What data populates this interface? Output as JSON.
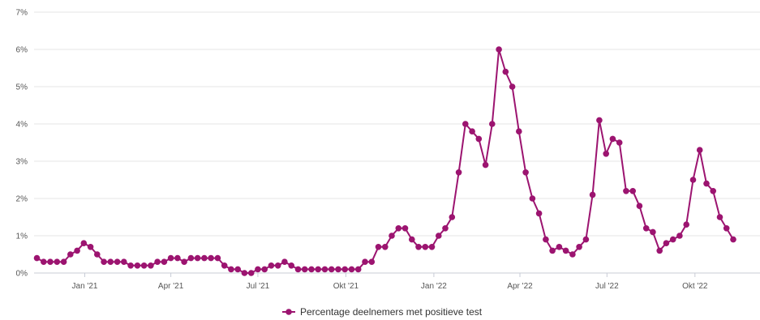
{
  "chart_data": {
    "type": "line",
    "title": "",
    "xlabel": "",
    "ylabel": "",
    "ylim": [
      0,
      7
    ],
    "y_ticks": [
      "0%",
      "1%",
      "2%",
      "3%",
      "4%",
      "5%",
      "6%",
      "7%"
    ],
    "x_range": [
      "2020-11-09",
      "2022-12-08"
    ],
    "x_ticks": [
      {
        "date": "2021-01-01",
        "label": "Jan '21"
      },
      {
        "date": "2021-04-01",
        "label": "Apr '21"
      },
      {
        "date": "2021-07-01",
        "label": "Jul '21"
      },
      {
        "date": "2021-10-01",
        "label": "Okt '21"
      },
      {
        "date": "2022-01-01",
        "label": "Jan '22"
      },
      {
        "date": "2022-04-01",
        "label": "Apr '22"
      },
      {
        "date": "2022-07-01",
        "label": "Jul '22"
      },
      {
        "date": "2022-10-01",
        "label": "Okt '22"
      }
    ],
    "grid": "horizontal",
    "legend_position": "bottom-center",
    "color": "#9c1470",
    "series": [
      {
        "name": "Percentage deelnemers met positieve test",
        "points": [
          [
            "2020-11-12",
            0.4
          ],
          [
            "2020-11-19",
            0.3
          ],
          [
            "2020-11-26",
            0.3
          ],
          [
            "2020-12-03",
            0.3
          ],
          [
            "2020-12-10",
            0.3
          ],
          [
            "2020-12-17",
            0.5
          ],
          [
            "2020-12-24",
            0.6
          ],
          [
            "2020-12-31",
            0.8
          ],
          [
            "2021-01-07",
            0.7
          ],
          [
            "2021-01-14",
            0.5
          ],
          [
            "2021-01-21",
            0.3
          ],
          [
            "2021-01-28",
            0.3
          ],
          [
            "2021-02-04",
            0.3
          ],
          [
            "2021-02-11",
            0.3
          ],
          [
            "2021-02-18",
            0.2
          ],
          [
            "2021-02-25",
            0.2
          ],
          [
            "2021-03-04",
            0.2
          ],
          [
            "2021-03-11",
            0.2
          ],
          [
            "2021-03-18",
            0.3
          ],
          [
            "2021-03-25",
            0.3
          ],
          [
            "2021-04-01",
            0.4
          ],
          [
            "2021-04-08",
            0.4
          ],
          [
            "2021-04-15",
            0.3
          ],
          [
            "2021-04-22",
            0.4
          ],
          [
            "2021-04-29",
            0.4
          ],
          [
            "2021-05-06",
            0.4
          ],
          [
            "2021-05-13",
            0.4
          ],
          [
            "2021-05-20",
            0.4
          ],
          [
            "2021-05-27",
            0.2
          ],
          [
            "2021-06-03",
            0.1
          ],
          [
            "2021-06-10",
            0.1
          ],
          [
            "2021-06-17",
            0.0
          ],
          [
            "2021-06-24",
            0.0
          ],
          [
            "2021-07-01",
            0.1
          ],
          [
            "2021-07-08",
            0.1
          ],
          [
            "2021-07-15",
            0.2
          ],
          [
            "2021-07-22",
            0.2
          ],
          [
            "2021-07-29",
            0.3
          ],
          [
            "2021-08-05",
            0.2
          ],
          [
            "2021-08-12",
            0.1
          ],
          [
            "2021-08-19",
            0.1
          ],
          [
            "2021-08-26",
            0.1
          ],
          [
            "2021-09-02",
            0.1
          ],
          [
            "2021-09-09",
            0.1
          ],
          [
            "2021-09-16",
            0.1
          ],
          [
            "2021-09-23",
            0.1
          ],
          [
            "2021-09-30",
            0.1
          ],
          [
            "2021-10-07",
            0.1
          ],
          [
            "2021-10-14",
            0.1
          ],
          [
            "2021-10-21",
            0.3
          ],
          [
            "2021-10-28",
            0.3
          ],
          [
            "2021-11-04",
            0.7
          ],
          [
            "2021-11-11",
            0.7
          ],
          [
            "2021-11-18",
            1.0
          ],
          [
            "2021-11-25",
            1.2
          ],
          [
            "2021-12-02",
            1.2
          ],
          [
            "2021-12-09",
            0.9
          ],
          [
            "2021-12-16",
            0.7
          ],
          [
            "2021-12-23",
            0.7
          ],
          [
            "2021-12-30",
            0.7
          ],
          [
            "2022-01-06",
            1.0
          ],
          [
            "2022-01-13",
            1.2
          ],
          [
            "2022-01-20",
            1.5
          ],
          [
            "2022-01-27",
            2.7
          ],
          [
            "2022-02-03",
            4.0
          ],
          [
            "2022-02-10",
            3.8
          ],
          [
            "2022-02-17",
            3.6
          ],
          [
            "2022-02-24",
            2.9
          ],
          [
            "2022-03-03",
            4.0
          ],
          [
            "2022-03-10",
            6.0
          ],
          [
            "2022-03-17",
            5.4
          ],
          [
            "2022-03-24",
            5.0
          ],
          [
            "2022-03-31",
            3.8
          ],
          [
            "2022-04-07",
            2.7
          ],
          [
            "2022-04-14",
            2.0
          ],
          [
            "2022-04-21",
            1.6
          ],
          [
            "2022-04-28",
            0.9
          ],
          [
            "2022-05-05",
            0.6
          ],
          [
            "2022-05-12",
            0.7
          ],
          [
            "2022-05-19",
            0.6
          ],
          [
            "2022-05-26",
            0.5
          ],
          [
            "2022-06-02",
            0.7
          ],
          [
            "2022-06-09",
            0.9
          ],
          [
            "2022-06-16",
            2.1
          ],
          [
            "2022-06-23",
            4.1
          ],
          [
            "2022-06-30",
            3.2
          ],
          [
            "2022-07-07",
            3.6
          ],
          [
            "2022-07-14",
            3.5
          ],
          [
            "2022-07-21",
            2.2
          ],
          [
            "2022-07-28",
            2.2
          ],
          [
            "2022-08-04",
            1.8
          ],
          [
            "2022-08-11",
            1.2
          ],
          [
            "2022-08-18",
            1.1
          ],
          [
            "2022-08-25",
            0.6
          ],
          [
            "2022-09-01",
            0.8
          ],
          [
            "2022-09-08",
            0.9
          ],
          [
            "2022-09-15",
            1.0
          ],
          [
            "2022-09-22",
            1.3
          ],
          [
            "2022-09-29",
            2.5
          ],
          [
            "2022-10-06",
            3.3
          ],
          [
            "2022-10-13",
            2.4
          ],
          [
            "2022-10-20",
            2.2
          ],
          [
            "2022-10-27",
            1.5
          ],
          [
            "2022-11-03",
            1.2
          ],
          [
            "2022-11-10",
            0.9
          ]
        ]
      }
    ]
  }
}
